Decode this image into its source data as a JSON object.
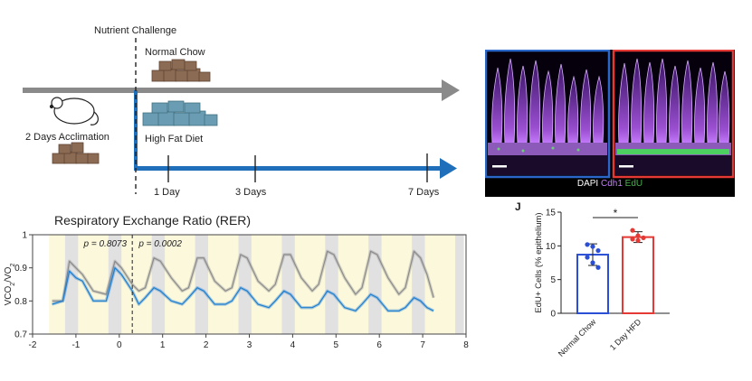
{
  "timeline": {
    "challenge_label": "Nutrient Challenge",
    "normal_chow_label": "Normal Chow",
    "high_fat_label": "High Fat Diet",
    "acclimation_label": "2 Days Acclimation",
    "day_marks": [
      "1 Day",
      "3 Days",
      "7 Days"
    ],
    "colors": {
      "chow_arrow": "#8a8a8a",
      "hfd_arrow": "#1f6fba",
      "chow_food": "#8b6b53",
      "hfd_food": "#6a9cb3"
    }
  },
  "micrographs": {
    "legend": {
      "dapi": "DAPI",
      "cdh1": "Cdh1",
      "edu": "EdU"
    },
    "colors": {
      "left_border": "#2a67c9",
      "right_border": "#e53935",
      "dapi": "#ffffff",
      "cdh1": "#c77dff",
      "edu": "#4caf50"
    }
  },
  "panel_j": {
    "letter": "J",
    "significance": "*",
    "chart_data": {
      "type": "bar",
      "ylabel": "EdU+ Cells (% epithelium)",
      "ylim": [
        0,
        15
      ],
      "yticks": [
        0,
        5,
        10,
        15
      ],
      "categories": [
        "Normal Chow",
        "1 Day HFD"
      ],
      "values": [
        8.7,
        11.3
      ],
      "errors": [
        1.6,
        0.8
      ],
      "points": [
        [
          10.2,
          9.9,
          9.3,
          8.3,
          7.5,
          6.8
        ],
        [
          12.3,
          11.5,
          11.2,
          11.0,
          10.8
        ]
      ],
      "colors": [
        "#2a4fd6",
        "#e53935"
      ]
    }
  },
  "rer": {
    "title": "Respiratory Exchange Ratio (RER)",
    "p_left": "p = 0.8073",
    "p_right": "p = 0.0002",
    "chart_data": {
      "type": "line",
      "xlim": [
        -2,
        8
      ],
      "ylim": [
        0.7,
        1.0
      ],
      "xticks": [
        -2,
        -1,
        0,
        1,
        2,
        3,
        4,
        5,
        6,
        7,
        8
      ],
      "yticks": [
        0.7,
        0.8,
        0.9,
        1.0
      ],
      "ytick_labels": [
        "0.7",
        "0.8",
        "0.9",
        "1"
      ],
      "ylabel": "VCO2/VO2",
      "challenge_x": 0.3,
      "dark_periods": [
        [
          -1.25,
          -0.95
        ],
        [
          -0.25,
          0.05
        ],
        [
          0.75,
          1.05
        ],
        [
          1.75,
          2.05
        ],
        [
          2.75,
          3.05
        ],
        [
          3.75,
          4.05
        ],
        [
          4.75,
          5.05
        ],
        [
          5.75,
          6.05
        ],
        [
          6.75,
          7.05
        ],
        [
          7.75,
          7.95
        ]
      ],
      "series": [
        {
          "color": "#8c8c8c",
          "x": [
            -1.55,
            -1.3,
            -1.15,
            -1.0,
            -0.85,
            -0.6,
            -0.3,
            -0.1,
            0.05,
            0.3,
            0.45,
            0.6,
            0.8,
            0.95,
            1.2,
            1.45,
            1.6,
            1.8,
            1.95,
            2.2,
            2.45,
            2.6,
            2.8,
            2.95,
            3.2,
            3.45,
            3.6,
            3.8,
            3.95,
            4.2,
            4.45,
            4.6,
            4.8,
            4.95,
            5.2,
            5.45,
            5.6,
            5.8,
            5.95,
            6.2,
            6.45,
            6.6,
            6.8,
            6.95,
            7.1,
            7.25
          ],
          "y": [
            0.8,
            0.8,
            0.92,
            0.9,
            0.88,
            0.83,
            0.82,
            0.92,
            0.9,
            0.85,
            0.83,
            0.84,
            0.93,
            0.92,
            0.87,
            0.83,
            0.84,
            0.93,
            0.93,
            0.86,
            0.83,
            0.84,
            0.94,
            0.93,
            0.86,
            0.83,
            0.85,
            0.94,
            0.94,
            0.87,
            0.83,
            0.85,
            0.95,
            0.94,
            0.87,
            0.82,
            0.84,
            0.95,
            0.94,
            0.87,
            0.82,
            0.84,
            0.95,
            0.93,
            0.88,
            0.81
          ]
        },
        {
          "color": "#1f7fd0",
          "x": [
            -1.55,
            -1.3,
            -1.15,
            -1.0,
            -0.85,
            -0.6,
            -0.3,
            -0.1,
            0.05,
            0.3,
            0.45,
            0.6,
            0.8,
            0.95,
            1.2,
            1.45,
            1.6,
            1.8,
            1.95,
            2.2,
            2.45,
            2.6,
            2.8,
            2.95,
            3.2,
            3.45,
            3.6,
            3.8,
            3.95,
            4.2,
            4.45,
            4.6,
            4.8,
            4.95,
            5.2,
            5.45,
            5.6,
            5.8,
            5.95,
            6.2,
            6.45,
            6.6,
            6.8,
            6.95,
            7.1,
            7.25
          ],
          "y": [
            0.79,
            0.8,
            0.89,
            0.87,
            0.86,
            0.8,
            0.8,
            0.9,
            0.88,
            0.83,
            0.79,
            0.81,
            0.84,
            0.83,
            0.8,
            0.79,
            0.81,
            0.84,
            0.83,
            0.79,
            0.79,
            0.8,
            0.84,
            0.83,
            0.79,
            0.78,
            0.8,
            0.83,
            0.82,
            0.78,
            0.78,
            0.79,
            0.83,
            0.82,
            0.78,
            0.77,
            0.79,
            0.82,
            0.81,
            0.77,
            0.77,
            0.78,
            0.81,
            0.8,
            0.78,
            0.77
          ]
        }
      ]
    }
  }
}
